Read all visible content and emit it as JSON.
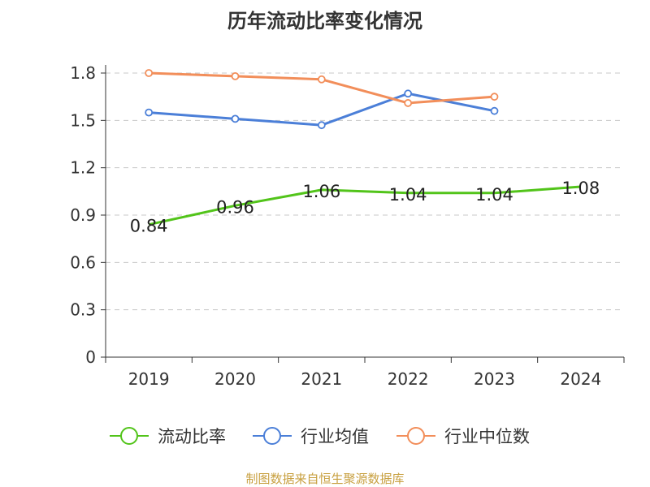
{
  "chart_data": {
    "type": "line",
    "title": "历年流动比率变化情况",
    "categories": [
      "2019",
      "2020",
      "2021",
      "2022",
      "2023",
      "2024"
    ],
    "y_ticks": [
      "0",
      "0.3",
      "0.6",
      "0.9",
      "1.2",
      "1.5",
      "1.8"
    ],
    "ylim": [
      0,
      1.8
    ],
    "grid": true,
    "legend_position": "bottom",
    "series": [
      {
        "name": "流动比率",
        "color": "#52c41a",
        "values": [
          0.84,
          0.96,
          1.06,
          1.04,
          1.04,
          1.08
        ],
        "labels": [
          "0.84",
          "0.96",
          "1.06",
          "1.04",
          "1.04",
          "1.08"
        ]
      },
      {
        "name": "行业均值",
        "color": "#4b7fd8",
        "values": [
          1.55,
          1.51,
          1.47,
          1.67,
          1.56,
          null
        ]
      },
      {
        "name": "行业中位数",
        "color": "#f28e5a",
        "values": [
          1.8,
          1.78,
          1.76,
          1.61,
          1.65,
          null
        ]
      }
    ]
  },
  "source": "制图数据来自恒生聚源数据库"
}
